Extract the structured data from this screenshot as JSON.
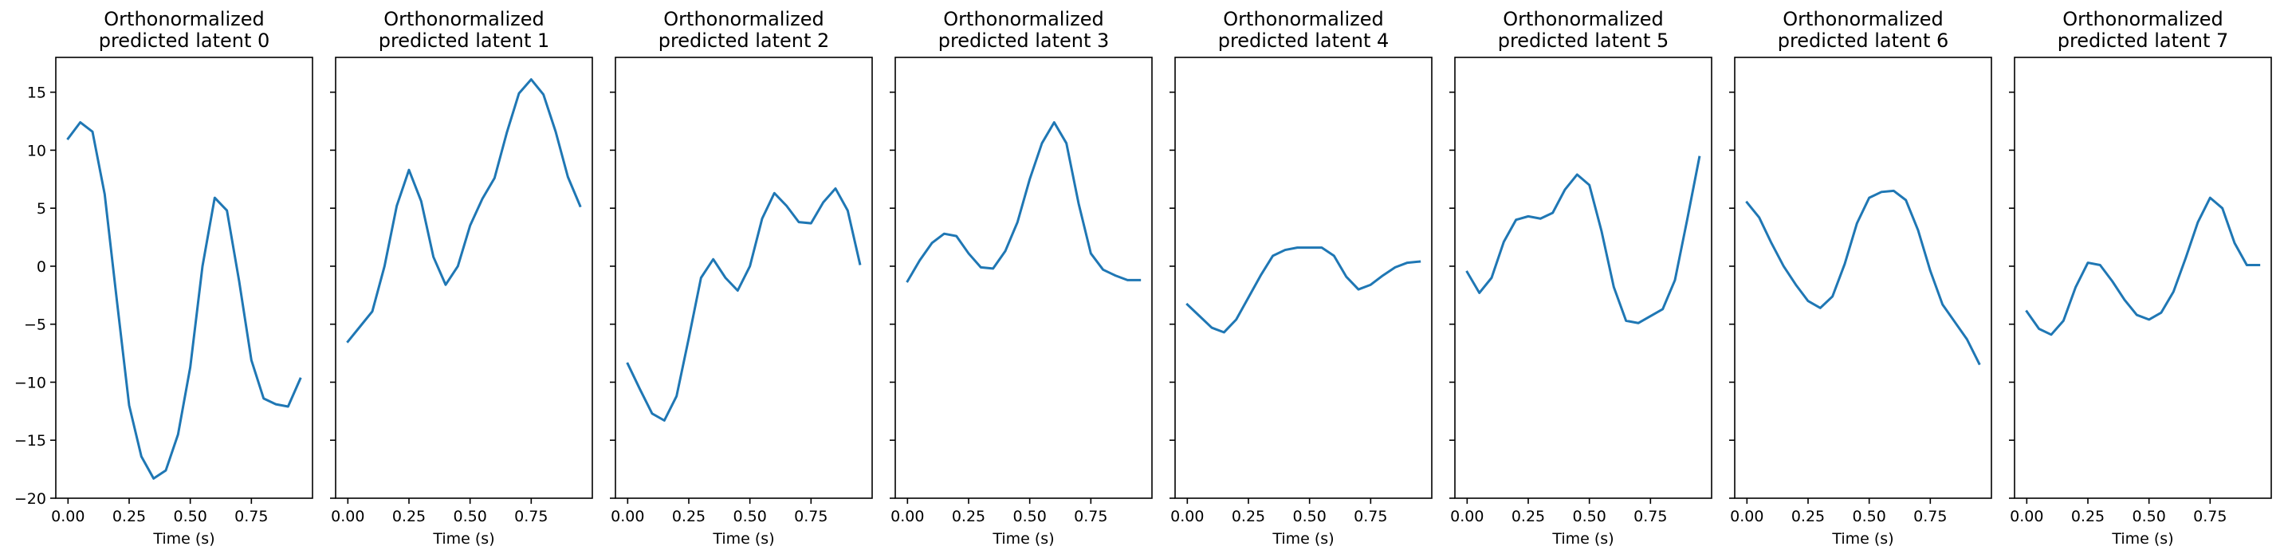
{
  "chart_data": [
    {
      "type": "line",
      "title": "Orthonormalized\npredicted latent 0",
      "xlabel": "Time (s)",
      "ylabel": "",
      "x": [
        0.0,
        0.05,
        0.1,
        0.15,
        0.2,
        0.25,
        0.3,
        0.35,
        0.4,
        0.45,
        0.5,
        0.55,
        0.6,
        0.65,
        0.7,
        0.75,
        0.8,
        0.85,
        0.9,
        0.95
      ],
      "series": [
        {
          "values": [
            11.0,
            12.4,
            11.6,
            6.2,
            -3.0,
            -12.0,
            -16.4,
            -18.3,
            -17.6,
            -14.5,
            -8.7,
            0.0,
            5.9,
            4.8,
            -1.3,
            -8.1,
            -11.4,
            -11.9,
            -12.1,
            -9.7
          ]
        }
      ],
      "xlim": [
        -0.05,
        1.0
      ],
      "ylim": [
        -20,
        18
      ],
      "xticks": [
        0.0,
        0.25,
        0.5,
        0.75
      ],
      "xtick_labels": [
        "0.00",
        "0.25",
        "0.50",
        "0.75"
      ],
      "yticks": [
        15,
        10,
        5,
        0,
        -5,
        -10,
        -15,
        -20
      ],
      "ytick_labels": [
        "15",
        "10",
        "5",
        "0",
        "−5",
        "−10",
        "−15",
        "−20"
      ],
      "show_ytick_labels": true,
      "color": "#1f77b4",
      "grid": false
    },
    {
      "type": "line",
      "title": "Orthonormalized\npredicted latent 1",
      "xlabel": "Time (s)",
      "ylabel": "",
      "x": [
        0.0,
        0.05,
        0.1,
        0.15,
        0.2,
        0.25,
        0.3,
        0.35,
        0.4,
        0.45,
        0.5,
        0.55,
        0.6,
        0.65,
        0.7,
        0.75,
        0.8,
        0.85,
        0.9,
        0.95
      ],
      "series": [
        {
          "values": [
            -6.5,
            -5.2,
            -3.9,
            0.0,
            5.2,
            8.3,
            5.6,
            0.8,
            -1.6,
            0.0,
            3.5,
            5.8,
            7.6,
            11.5,
            14.9,
            16.1,
            14.8,
            11.6,
            7.7,
            5.2
          ]
        }
      ],
      "xlim": [
        -0.05,
        1.0
      ],
      "ylim": [
        -20,
        18
      ],
      "xticks": [
        0.0,
        0.25,
        0.5,
        0.75
      ],
      "xtick_labels": [
        "0.00",
        "0.25",
        "0.50",
        "0.75"
      ],
      "yticks": [
        15,
        10,
        5,
        0,
        -5,
        -10,
        -15,
        -20
      ],
      "ytick_labels": [],
      "show_ytick_labels": false,
      "color": "#1f77b4",
      "grid": false
    },
    {
      "type": "line",
      "title": "Orthonormalized\npredicted latent 2",
      "xlabel": "Time (s)",
      "ylabel": "",
      "x": [
        0.0,
        0.05,
        0.1,
        0.15,
        0.2,
        0.25,
        0.3,
        0.35,
        0.4,
        0.45,
        0.5,
        0.55,
        0.6,
        0.65,
        0.7,
        0.75,
        0.8,
        0.85,
        0.9,
        0.95
      ],
      "series": [
        {
          "values": [
            -8.4,
            -10.6,
            -12.7,
            -13.3,
            -11.2,
            -6.2,
            -1.0,
            0.6,
            -1.0,
            -2.1,
            0.0,
            4.1,
            6.3,
            5.2,
            3.8,
            3.7,
            5.5,
            6.7,
            4.8,
            0.2
          ]
        }
      ],
      "xlim": [
        -0.05,
        1.0
      ],
      "ylim": [
        -20,
        18
      ],
      "xticks": [
        0.0,
        0.25,
        0.5,
        0.75
      ],
      "xtick_labels": [
        "0.00",
        "0.25",
        "0.50",
        "0.75"
      ],
      "yticks": [
        15,
        10,
        5,
        0,
        -5,
        -10,
        -15,
        -20
      ],
      "ytick_labels": [],
      "show_ytick_labels": false,
      "color": "#1f77b4",
      "grid": false
    },
    {
      "type": "line",
      "title": "Orthonormalized\npredicted latent 3",
      "xlabel": "Time (s)",
      "ylabel": "",
      "x": [
        0.0,
        0.05,
        0.1,
        0.15,
        0.2,
        0.25,
        0.3,
        0.35,
        0.4,
        0.45,
        0.5,
        0.55,
        0.6,
        0.65,
        0.7,
        0.75,
        0.8,
        0.85,
        0.9,
        0.95
      ],
      "series": [
        {
          "values": [
            -1.3,
            0.5,
            2.0,
            2.8,
            2.6,
            1.1,
            -0.1,
            -0.2,
            1.3,
            3.8,
            7.5,
            10.6,
            12.4,
            10.6,
            5.4,
            1.1,
            -0.3,
            -0.8,
            -1.2,
            -1.2
          ]
        }
      ],
      "xlim": [
        -0.05,
        1.0
      ],
      "ylim": [
        -20,
        18
      ],
      "xticks": [
        0.0,
        0.25,
        0.5,
        0.75
      ],
      "xtick_labels": [
        "0.00",
        "0.25",
        "0.50",
        "0.75"
      ],
      "yticks": [
        15,
        10,
        5,
        0,
        -5,
        -10,
        -15,
        -20
      ],
      "ytick_labels": [],
      "show_ytick_labels": false,
      "color": "#1f77b4",
      "grid": false
    },
    {
      "type": "line",
      "title": "Orthonormalized\npredicted latent 4",
      "xlabel": "Time (s)",
      "ylabel": "",
      "x": [
        0.0,
        0.05,
        0.1,
        0.15,
        0.2,
        0.25,
        0.3,
        0.35,
        0.4,
        0.45,
        0.5,
        0.55,
        0.6,
        0.65,
        0.7,
        0.75,
        0.8,
        0.85,
        0.9,
        0.95
      ],
      "series": [
        {
          "values": [
            -3.3,
            -4.3,
            -5.3,
            -5.7,
            -4.6,
            -2.7,
            -0.8,
            0.9,
            1.4,
            1.6,
            1.6,
            1.6,
            0.9,
            -0.9,
            -2.0,
            -1.6,
            -0.8,
            -0.1,
            0.3,
            0.4
          ]
        }
      ],
      "xlim": [
        -0.05,
        1.0
      ],
      "ylim": [
        -20,
        18
      ],
      "xticks": [
        0.0,
        0.25,
        0.5,
        0.75
      ],
      "xtick_labels": [
        "0.00",
        "0.25",
        "0.50",
        "0.75"
      ],
      "yticks": [
        15,
        10,
        5,
        0,
        -5,
        -10,
        -15,
        -20
      ],
      "ytick_labels": [],
      "show_ytick_labels": false,
      "color": "#1f77b4",
      "grid": false
    },
    {
      "type": "line",
      "title": "Orthonormalized\npredicted latent 5",
      "xlabel": "Time (s)",
      "ylabel": "",
      "x": [
        0.0,
        0.05,
        0.1,
        0.15,
        0.2,
        0.25,
        0.3,
        0.35,
        0.4,
        0.45,
        0.5,
        0.55,
        0.6,
        0.65,
        0.7,
        0.75,
        0.8,
        0.85,
        0.9,
        0.95
      ],
      "series": [
        {
          "values": [
            -0.5,
            -2.3,
            -1.0,
            2.1,
            4.0,
            4.3,
            4.1,
            4.6,
            6.6,
            7.9,
            7.0,
            3.0,
            -1.8,
            -4.7,
            -4.9,
            -4.3,
            -3.7,
            -1.2,
            4.0,
            9.4
          ]
        }
      ],
      "xlim": [
        -0.05,
        1.0
      ],
      "ylim": [
        -20,
        18
      ],
      "xticks": [
        0.0,
        0.25,
        0.5,
        0.75
      ],
      "xtick_labels": [
        "0.00",
        "0.25",
        "0.50",
        "0.75"
      ],
      "yticks": [
        15,
        10,
        5,
        0,
        -5,
        -10,
        -15,
        -20
      ],
      "ytick_labels": [],
      "show_ytick_labels": false,
      "color": "#1f77b4",
      "grid": false
    },
    {
      "type": "line",
      "title": "Orthonormalized\npredicted latent 6",
      "xlabel": "Time (s)",
      "ylabel": "",
      "x": [
        0.0,
        0.05,
        0.1,
        0.15,
        0.2,
        0.25,
        0.3,
        0.35,
        0.4,
        0.45,
        0.5,
        0.55,
        0.6,
        0.65,
        0.7,
        0.75,
        0.8,
        0.85,
        0.9,
        0.95
      ],
      "series": [
        {
          "values": [
            5.5,
            4.2,
            2.0,
            0.0,
            -1.6,
            -3.0,
            -3.6,
            -2.6,
            0.2,
            3.7,
            5.9,
            6.4,
            6.5,
            5.7,
            3.1,
            -0.4,
            -3.3,
            -4.8,
            -6.3,
            -8.4
          ]
        }
      ],
      "xlim": [
        -0.05,
        1.0
      ],
      "ylim": [
        -20,
        18
      ],
      "xticks": [
        0.0,
        0.25,
        0.5,
        0.75
      ],
      "xtick_labels": [
        "0.00",
        "0.25",
        "0.50",
        "0.75"
      ],
      "yticks": [
        15,
        10,
        5,
        0,
        -5,
        -10,
        -15,
        -20
      ],
      "ytick_labels": [],
      "show_ytick_labels": false,
      "color": "#1f77b4",
      "grid": false
    },
    {
      "type": "line",
      "title": "Orthonormalized\npredicted latent 7",
      "xlabel": "Time (s)",
      "ylabel": "",
      "x": [
        0.0,
        0.05,
        0.1,
        0.15,
        0.2,
        0.25,
        0.3,
        0.35,
        0.4,
        0.45,
        0.5,
        0.55,
        0.6,
        0.65,
        0.7,
        0.75,
        0.8,
        0.85,
        0.9,
        0.95
      ],
      "series": [
        {
          "values": [
            -3.9,
            -5.4,
            -5.9,
            -4.7,
            -1.8,
            0.3,
            0.1,
            -1.3,
            -2.9,
            -4.2,
            -4.6,
            -4.0,
            -2.2,
            0.7,
            3.8,
            5.9,
            5.0,
            2.0,
            0.1,
            0.1
          ]
        }
      ],
      "xlim": [
        -0.05,
        1.0
      ],
      "ylim": [
        -20,
        18
      ],
      "xticks": [
        0.0,
        0.25,
        0.5,
        0.75
      ],
      "xtick_labels": [
        "0.00",
        "0.25",
        "0.50",
        "0.75"
      ],
      "yticks": [
        15,
        10,
        5,
        0,
        -5,
        -10,
        -15,
        -20
      ],
      "ytick_labels": [],
      "show_ytick_labels": false,
      "color": "#1f77b4",
      "grid": false
    }
  ]
}
